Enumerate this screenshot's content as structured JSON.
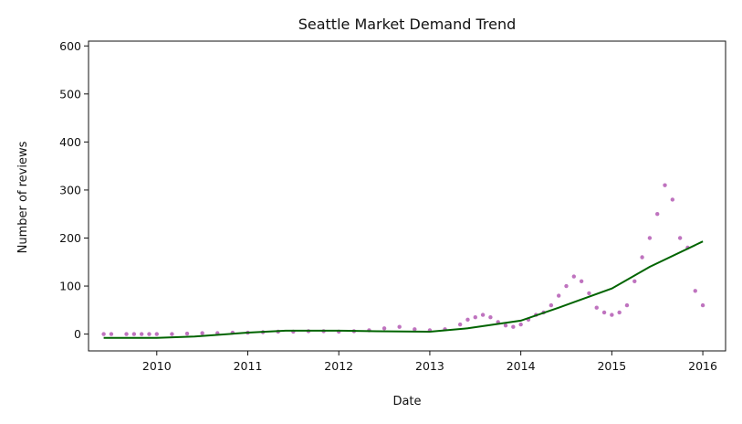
{
  "chart_data": {
    "type": "scatter",
    "title": "Seattle Market Demand Trend",
    "xlabel": "Date",
    "ylabel": "Number of reviews",
    "xlim": [
      "2009-04",
      "2016-04"
    ],
    "ylim": [
      -35,
      610
    ],
    "x_ticks": [
      "2010",
      "2011",
      "2012",
      "2013",
      "2014",
      "2015",
      "2016"
    ],
    "y_ticks": [
      "0",
      "100",
      "200",
      "300",
      "400",
      "500",
      "600"
    ],
    "grid": false,
    "legend": "none",
    "colors": {
      "points": "#8b008b",
      "trend": "#006400"
    },
    "series": [
      {
        "kind": "scatter",
        "x": [
          "2009-06",
          "2009-07",
          "2009-09",
          "2009-10",
          "2009-11",
          "2009-12",
          "2010-01",
          "2010-03",
          "2010-05",
          "2010-07",
          "2010-09",
          "2010-11",
          "2011-01",
          "2011-03",
          "2011-05",
          "2011-07",
          "2011-09",
          "2011-11",
          "2012-01",
          "2012-03",
          "2012-05",
          "2012-07",
          "2012-09",
          "2012-11",
          "2013-01",
          "2013-03",
          "2013-05",
          "2013-06",
          "2013-07",
          "2013-08",
          "2013-09",
          "2013-10",
          "2013-11",
          "2013-12",
          "2014-01",
          "2014-02",
          "2014-03",
          "2014-04",
          "2014-05",
          "2014-06",
          "2014-07",
          "2014-08",
          "2014-09",
          "2014-10",
          "2014-11",
          "2014-12",
          "2015-01",
          "2015-02",
          "2015-03",
          "2015-04",
          "2015-05",
          "2015-06",
          "2015-07",
          "2015-08",
          "2015-09",
          "2015-10",
          "2015-11",
          "2015-12",
          "2016-01"
        ],
        "y": [
          0,
          0,
          0,
          0,
          0,
          0,
          0,
          0,
          1,
          2,
          2,
          3,
          3,
          4,
          5,
          5,
          6,
          6,
          5,
          6,
          8,
          12,
          15,
          10,
          8,
          10,
          20,
          30,
          35,
          40,
          35,
          25,
          18,
          15,
          20,
          30,
          40,
          45,
          60,
          80,
          100,
          120,
          110,
          85,
          55,
          45,
          40,
          45,
          60,
          110,
          160,
          200,
          250,
          310,
          280,
          200,
          180,
          90,
          60
        ]
      },
      {
        "kind": "line",
        "name": "",
        "x": [
          "2009-06",
          "2010-01",
          "2010-06",
          "2011-01",
          "2011-06",
          "2012-01",
          "2012-06",
          "2013-01",
          "2013-06",
          "2014-01",
          "2014-06",
          "2015-01",
          "2015-06",
          "2016-01"
        ],
        "y": [
          -8,
          -8,
          -5,
          3,
          7,
          7,
          6,
          5,
          12,
          28,
          55,
          95,
          140,
          193
        ]
      }
    ]
  }
}
